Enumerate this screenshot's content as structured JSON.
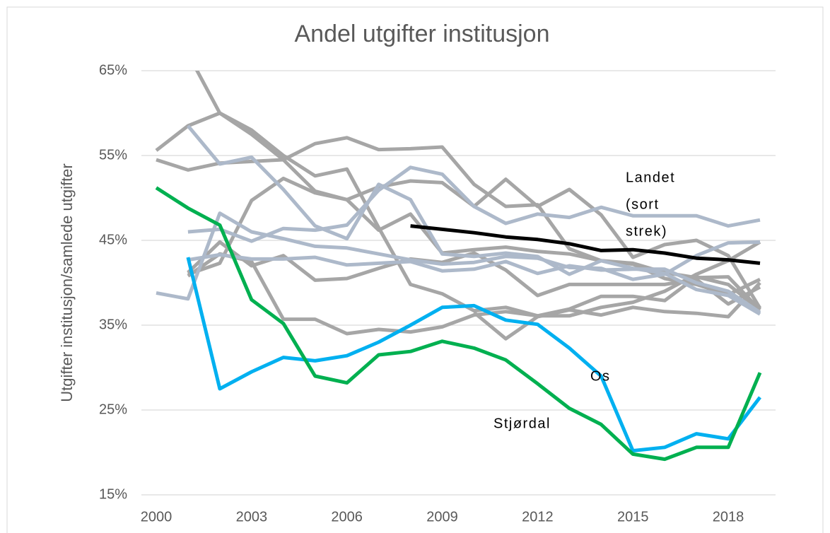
{
  "chart_data": {
    "type": "line",
    "title": "Andel utgifter institusjon",
    "y_label": "Utgifter institusjon/samlede utgifter",
    "x": [
      2000,
      2001,
      2002,
      2003,
      2004,
      2005,
      2006,
      2007,
      2008,
      2009,
      2010,
      2011,
      2012,
      2013,
      2014,
      2015,
      2016,
      2017,
      2018,
      2019
    ],
    "xlim": [
      2000,
      2019
    ],
    "xticks": [
      2000,
      2003,
      2006,
      2009,
      2012,
      2015,
      2018
    ],
    "ylim": [
      15,
      65
    ],
    "yticks": [
      {
        "value": 15,
        "label": "15%"
      },
      {
        "value": 25,
        "label": "25%"
      },
      {
        "value": 35,
        "label": "35%"
      },
      {
        "value": 45,
        "label": "45%"
      },
      {
        "value": 55,
        "label": "55%"
      },
      {
        "value": 65,
        "label": "65%"
      }
    ],
    "grid": true,
    "series": [
      {
        "color": "#a6a6a6",
        "values": [
          null,
          67,
          60,
          57.5,
          54.5,
          50.8,
          49.8,
          46.2,
          48.1,
          43.5,
          43.9,
          44.2,
          43.7,
          43.4,
          42.6,
          42.3,
          41.2,
          40.6,
          40.7,
          36.8
        ]
      },
      {
        "color": "#a6a6a6",
        "values": [
          55.6,
          58.5,
          60,
          58,
          55,
          52.6,
          53.4,
          46.5,
          39.8,
          38.7,
          36.7,
          37.1,
          36.1,
          36.1,
          37.1,
          37.7,
          39,
          41,
          42.6,
          44.8
        ]
      },
      {
        "color": "#a6a6a6",
        "values": [
          54.5,
          53.3,
          54.1,
          54.3,
          54.5,
          56.4,
          57.1,
          55.7,
          55.8,
          56,
          51.6,
          49,
          49.2,
          44,
          42.6,
          42.2,
          40.5,
          39.8,
          38.6,
          40.4
        ]
      },
      {
        "color": "#a6a6a6",
        "values": [
          null,
          40.8,
          43.4,
          42.5,
          35.7,
          35.7,
          34,
          34.5,
          34.2,
          34.8,
          36.2,
          36.6,
          36.1,
          36.9,
          38.4,
          38.4,
          37.9,
          40.7,
          39.8,
          36.8
        ]
      },
      {
        "color": "#a6a6a6",
        "values": [
          null,
          41,
          42.3,
          49.7,
          52.3,
          50.6,
          49.8,
          51.3,
          52,
          51.8,
          49,
          52.2,
          49,
          51,
          48,
          43,
          44.5,
          45,
          43.2,
          37
        ]
      },
      {
        "color": "#a6a6a6",
        "values": [
          null,
          41.2,
          44.8,
          42,
          43.2,
          40.3,
          40.5,
          41.7,
          42.8,
          42.4,
          43.5,
          41.5,
          38.5,
          39.8,
          39.8,
          39.8,
          39.8,
          40.4,
          37.5,
          39.5
        ]
      },
      {
        "color": "#a6a6a6",
        "values": [
          null,
          null,
          null,
          null,
          null,
          null,
          null,
          null,
          null,
          null,
          36.5,
          33.4,
          36,
          36.8,
          36.2,
          37.1,
          36.6,
          36.4,
          36,
          40
        ]
      },
      {
        "color": "#adb9ca",
        "values": [
          38.8,
          38.1,
          48.2,
          46,
          45.2,
          44.3,
          44.1,
          43.4,
          42.7,
          42.2,
          42.4,
          43.1,
          42.9,
          41.8,
          41.7,
          40.4,
          41,
          43.2,
          44.7,
          44.8
        ]
      },
      {
        "color": "#adb9ca",
        "values": [
          null,
          58.5,
          54,
          54.8,
          51,
          46.7,
          45.2,
          51.6,
          49.8,
          43.4,
          43.1,
          43.5,
          43.1,
          41,
          42.6,
          41.7,
          41.1,
          39.2,
          38.5,
          36.3
        ]
      },
      {
        "color": "#adb9ca",
        "values": [
          null,
          46,
          46.3,
          44.9,
          46.4,
          46.2,
          46.8,
          50.9,
          53.6,
          52.8,
          49,
          47,
          48.1,
          47.7,
          48.9,
          47.9,
          47.9,
          47.9,
          46.7,
          47.4
        ]
      },
      {
        "color": "#adb9ca",
        "values": [
          null,
          42.7,
          43.3,
          42.8,
          42.8,
          43,
          42.1,
          42.3,
          42.5,
          41.4,
          41.6,
          42.5,
          41.1,
          42,
          41.5,
          41.6,
          41.6,
          40,
          39,
          36.5
        ]
      },
      {
        "color": "#000000",
        "values": [
          null,
          null,
          null,
          null,
          null,
          null,
          null,
          null,
          46.7,
          46.3,
          45.9,
          45.4,
          45.1,
          44.6,
          43.8,
          43.9,
          43.5,
          42.9,
          42.7,
          42.3
        ]
      },
      {
        "color": "#00b0f0",
        "values": [
          null,
          43,
          27.5,
          29.5,
          31.2,
          30.8,
          31.4,
          33,
          35,
          37.1,
          37.3,
          35.6,
          35.1,
          32.3,
          29,
          20.2,
          20.6,
          22.2,
          21.6,
          26.5
        ]
      },
      {
        "color": "#00b050",
        "values": [
          51.2,
          48.8,
          46.8,
          38,
          35.2,
          29,
          28.2,
          31.5,
          31.9,
          33.1,
          32.3,
          30.9,
          28.1,
          25.2,
          23.3,
          19.8,
          19.2,
          20.6,
          20.6,
          29.4
        ]
      }
    ],
    "annotations": [
      [
        "Landet",
        "(sort",
        "strek)"
      ],
      [
        "Os"
      ],
      [
        "Stjørdal"
      ]
    ]
  }
}
